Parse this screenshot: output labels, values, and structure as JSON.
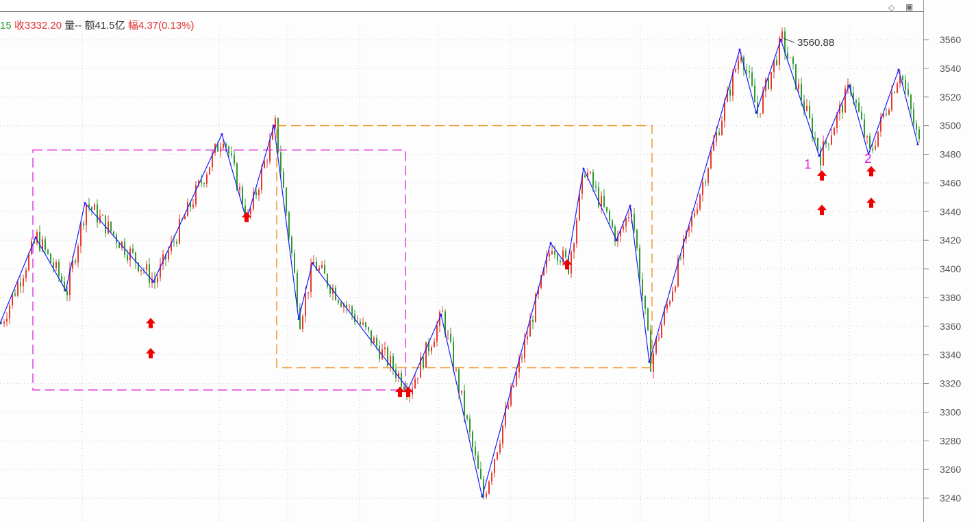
{
  "header": {
    "prefix": "15",
    "close_label": "收3332.20",
    "volume_label": "量--",
    "amount_label": "额41.5亿",
    "range_label": "幅4.37(0.13%)"
  },
  "toolbar_icons": [
    "diamond-icon",
    "window-toggle-icon"
  ],
  "colors": {
    "up": "#e8392f",
    "down": "#2e9a2e",
    "zigzag": "#1a1aff",
    "box1": "#e040e0",
    "box2": "#f0962e",
    "arrow": "#ee0000",
    "label": "#e020e0"
  },
  "chart_data": {
    "type": "candlestick",
    "ylim": [
      3230,
      3570
    ],
    "y_ticks": [
      3240,
      3260,
      3280,
      3300,
      3320,
      3340,
      3360,
      3380,
      3400,
      3420,
      3440,
      3460,
      3480,
      3500,
      3520,
      3540,
      3560
    ],
    "grid": true,
    "x_range": [
      0,
      337
    ],
    "zigzag": [
      [
        0,
        3362
      ],
      [
        13,
        3422
      ],
      [
        24,
        3385
      ],
      [
        31,
        3446
      ],
      [
        56,
        3391
      ],
      [
        81,
        3494
      ],
      [
        90,
        3434
      ],
      [
        100,
        3500
      ],
      [
        109,
        3365
      ],
      [
        114,
        3404
      ],
      [
        149,
        3316
      ],
      [
        161,
        3368
      ],
      [
        176,
        3241
      ],
      [
        201,
        3418
      ],
      [
        207,
        3402
      ],
      [
        213,
        3470
      ],
      [
        225,
        3420
      ],
      [
        230,
        3444
      ],
      [
        237,
        3335
      ],
      [
        270,
        3553
      ],
      [
        276,
        3509
      ],
      [
        285,
        3560
      ],
      [
        299,
        3479
      ],
      [
        310,
        3528
      ],
      [
        317,
        3480
      ],
      [
        328,
        3539
      ],
      [
        335,
        3487
      ]
    ],
    "boxes": [
      {
        "x": [
          12,
          148
        ],
        "y": [
          3315.5,
          3483
        ]
      },
      {
        "x": [
          101,
          238
        ],
        "y": [
          3331,
          3500
        ]
      }
    ],
    "annotations": [
      {
        "text": "3560.88",
        "x": 285,
        "y": 3560.88
      },
      {
        "text": "1",
        "x": 295,
        "y": 3470
      },
      {
        "text": "2",
        "x": 317,
        "y": 3474
      }
    ],
    "up_arrows": [
      [
        55,
        3362
      ],
      [
        55,
        3341
      ],
      [
        90,
        3436
      ],
      [
        146,
        3314
      ],
      [
        149,
        3314
      ],
      [
        207,
        3403
      ],
      [
        300,
        3465
      ],
      [
        300,
        3441
      ],
      [
        318,
        3468
      ],
      [
        318,
        3446
      ]
    ]
  }
}
